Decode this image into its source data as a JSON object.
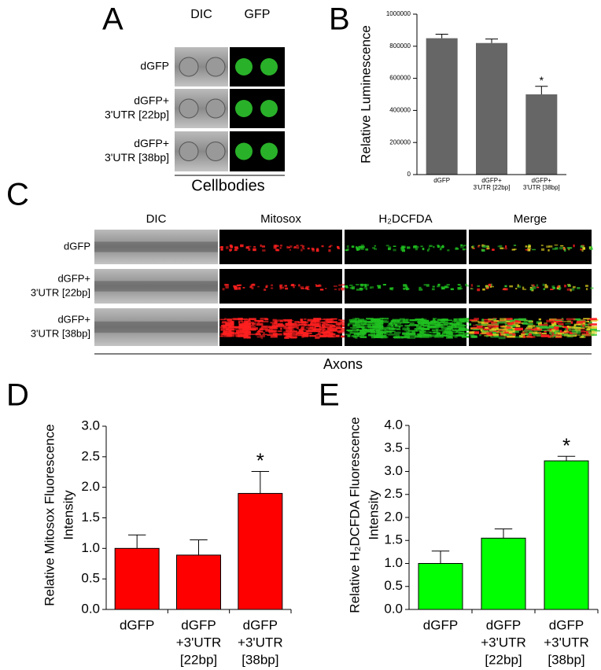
{
  "panel_labels": [
    "A",
    "B",
    "C",
    "D",
    "E"
  ],
  "panel_a": {
    "columns": [
      "DIC",
      "GFP"
    ],
    "rows": [
      [
        "dGFP"
      ],
      [
        "dGFP+",
        "3'UTR [22bp]"
      ],
      [
        "dGFP+",
        "3'UTR [38bp]"
      ]
    ],
    "caption": "Cellbodies"
  },
  "panel_c": {
    "columns": [
      "DIC",
      "Mitosox",
      "H₂DCFDA",
      "Merge"
    ],
    "rows": [
      [
        "dGFP"
      ],
      [
        "dGFP+",
        "3'UTR [22bp]"
      ],
      [
        "dGFP+",
        "3'UTR [38bp]"
      ]
    ],
    "caption": "Axons"
  },
  "chart_data": [
    {
      "type": "bar",
      "ylabel": [
        "Relative Luminescence"
      ],
      "categories": [
        [
          "dGFP"
        ],
        [
          "dGFP+",
          "3'UTR [22bp]"
        ],
        [
          "dGFP+",
          "3'UTR [38bp]"
        ]
      ],
      "values": [
        850000,
        820000,
        500000
      ],
      "errors": [
        25000,
        25000,
        50000
      ],
      "significance": [
        null,
        null,
        "*"
      ],
      "color": "#666666",
      "ylim": [
        0,
        1000000
      ],
      "yticks": [
        0,
        200000,
        400000,
        600000,
        800000,
        1000000
      ]
    },
    {
      "type": "bar",
      "ylabel": [
        "Relative Mitosox Fluorescence",
        "Intensity"
      ],
      "categories": [
        [
          "dGFP"
        ],
        [
          "dGFP",
          "+3'UTR",
          "[22bp]"
        ],
        [
          "dGFP",
          "+3'UTR",
          "[38bp]"
        ]
      ],
      "values": [
        1.0,
        0.89,
        1.9
      ],
      "errors": [
        0.22,
        0.25,
        0.36
      ],
      "significance": [
        null,
        null,
        "*"
      ],
      "color": "#ff0000",
      "ylim": [
        0,
        3
      ],
      "yticks": [
        {
          "value": 0,
          "label": "0.0"
        },
        0.5,
        {
          "value": 1,
          "label": "1.0"
        },
        1.5,
        {
          "value": 2,
          "label": "2.0"
        },
        2.5,
        {
          "value": 3,
          "label": "3.0"
        }
      ]
    },
    {
      "type": "bar",
      "ylabel": [
        "Relative H₂DCFDA Fluorescence",
        "Intensity"
      ],
      "categories": [
        [
          "dGFP"
        ],
        [
          "dGFP",
          "+3'UTR",
          "[22bp]"
        ],
        [
          "dGFP",
          "+3'UTR",
          "[38bp]"
        ]
      ],
      "values": [
        1.0,
        1.55,
        3.23
      ],
      "errors": [
        0.27,
        0.2,
        0.1
      ],
      "significance": [
        null,
        null,
        "*"
      ],
      "color": "#00ff00",
      "ylim": [
        0,
        4
      ],
      "yticks": [
        {
          "value": 0,
          "label": "0.0"
        },
        0.5,
        {
          "value": 1,
          "label": "1.0"
        },
        1.5,
        {
          "value": 2,
          "label": "2.0"
        },
        2.5,
        {
          "value": 3,
          "label": "3.0"
        },
        3.5,
        {
          "value": 4,
          "label": "4.0"
        }
      ]
    }
  ]
}
